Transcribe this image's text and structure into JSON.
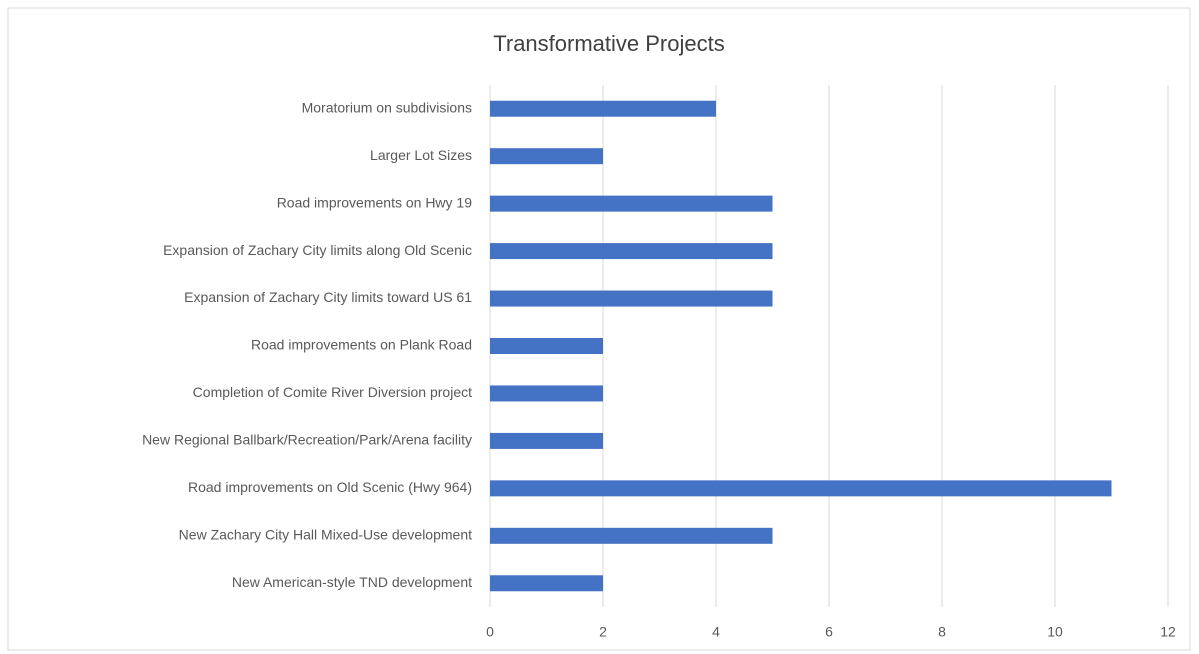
{
  "chart_data": {
    "type": "bar",
    "orientation": "horizontal",
    "title": "Transformative Projects",
    "categories": [
      "Moratorium on subdivisions",
      "Larger Lot Sizes",
      "Road improvements on Hwy 19",
      "Expansion of Zachary City limits along Old Scenic",
      "Expansion of Zachary City limits toward US 61",
      "Road improvements on Plank Road",
      "Completion of Comite River Diversion project",
      "New Regional Ballbark/Recreation/Park/Arena facility",
      "Road improvements on Old Scenic (Hwy 964)",
      "New Zachary City Hall Mixed-Use development",
      "New American-style TND development"
    ],
    "values": [
      4,
      2,
      5,
      5,
      5,
      2,
      2,
      2,
      11,
      5,
      2
    ],
    "color": "#4472c4",
    "xlim": [
      0,
      12
    ],
    "xticks": [
      0,
      2,
      4,
      6,
      8,
      10,
      12
    ],
    "grid": true
  }
}
